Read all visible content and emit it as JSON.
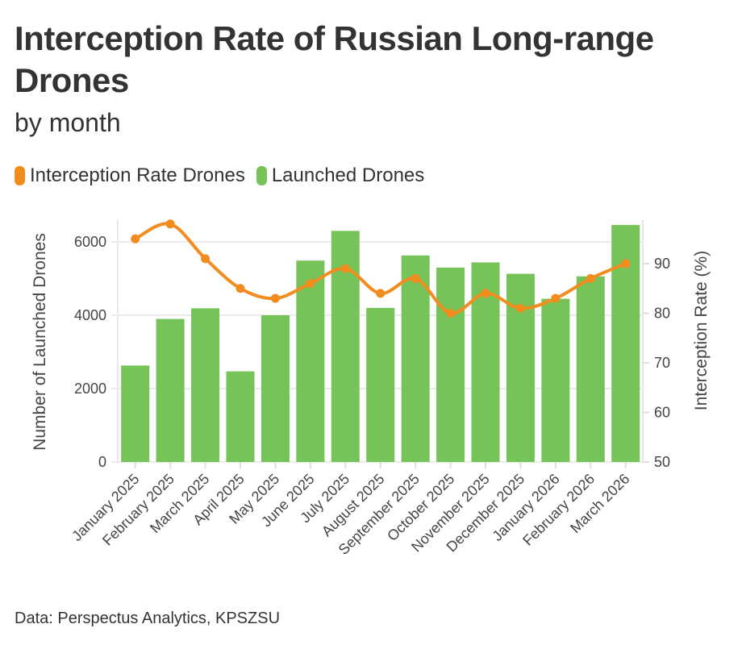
{
  "header": {
    "title": "Interception Rate of Russian Long-range Drones",
    "subtitle": "by month"
  },
  "legend": [
    {
      "label": "Interception Rate Drones",
      "color": "#F28C1E"
    },
    {
      "label": "Launched Drones",
      "color": "#76C35A"
    }
  ],
  "footer": {
    "source": "Data: Perspectus Analytics, KPSZSU"
  },
  "chart_data": {
    "type": "bar",
    "title": "Interception Rate of Russian Long-range Drones",
    "subtitle": "by month",
    "categories": [
      "January 2025",
      "February 2025",
      "March 2025",
      "April 2025",
      "May 2025",
      "June 2025",
      "July 2025",
      "August 2025",
      "September 2025",
      "October 2025",
      "November 2025",
      "December 2025",
      "January 2026",
      "February 2026",
      "March 2026"
    ],
    "series": [
      {
        "name": "Launched Drones",
        "type": "bar",
        "axis": "left",
        "color": "#76C35A",
        "values": [
          2630,
          3900,
          4190,
          2470,
          4000,
          5490,
          6300,
          4200,
          5630,
          5300,
          5440,
          5130,
          4450,
          5060,
          6460
        ]
      },
      {
        "name": "Interception Rate Drones",
        "type": "line",
        "axis": "right",
        "color": "#F28C1E",
        "values": [
          95,
          98,
          91,
          85,
          83,
          86,
          89,
          84,
          87,
          80,
          84,
          81,
          83,
          87,
          90
        ]
      }
    ],
    "ylabel": "Number of Launched Drones",
    "ylim": [
      0,
      6600
    ],
    "yticks": [
      0,
      2000,
      4000,
      6000
    ],
    "y2label": "Interception Rate (%)",
    "y2lim": [
      50,
      98.8
    ],
    "y2ticks": [
      50,
      60,
      70,
      80,
      90
    ],
    "grid": true,
    "legend_position": "top-left",
    "source": "Data: Perspectus Analytics, KPSZSU"
  }
}
